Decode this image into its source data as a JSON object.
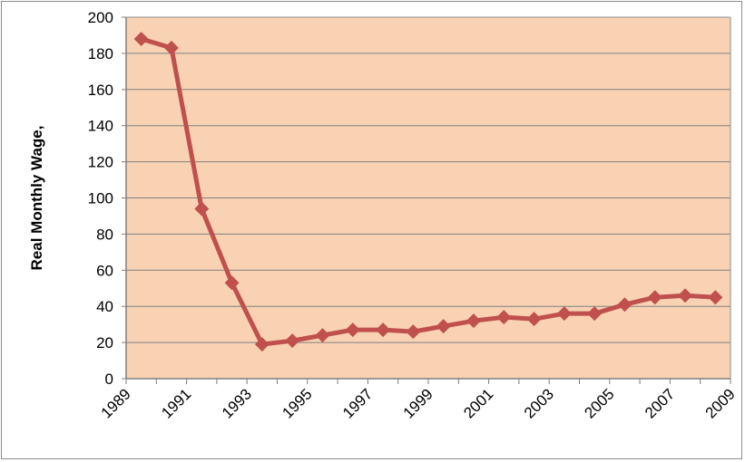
{
  "chart_data": {
    "type": "line",
    "title": "",
    "xlabel": "",
    "ylabel": "Real Monthly Wage,",
    "ylim": [
      0,
      200
    ],
    "y_ticks": [
      0,
      20,
      40,
      60,
      80,
      100,
      120,
      140,
      160,
      180,
      200
    ],
    "x_ticks": [
      "1989",
      "1991",
      "1993",
      "1995",
      "1997",
      "1999",
      "2001",
      "2003",
      "2005",
      "2007",
      "2009"
    ],
    "grid": true,
    "legend": "none",
    "colors": {
      "plot_background": "#f9d2b4",
      "line": "#c0504d",
      "grid": "#7f7f7f"
    },
    "series": [
      {
        "x": [
          1989,
          1990,
          1991,
          1992,
          1993,
          1994,
          1995,
          1996,
          1997,
          1998,
          1999,
          2000,
          2001,
          2002,
          2003,
          2004,
          2005,
          2006,
          2007,
          2008
        ],
        "values": [
          188,
          183,
          94,
          53,
          19,
          21,
          24,
          27,
          27,
          26,
          29,
          32,
          34,
          33,
          36,
          36,
          41,
          45,
          46,
          45
        ]
      }
    ]
  }
}
